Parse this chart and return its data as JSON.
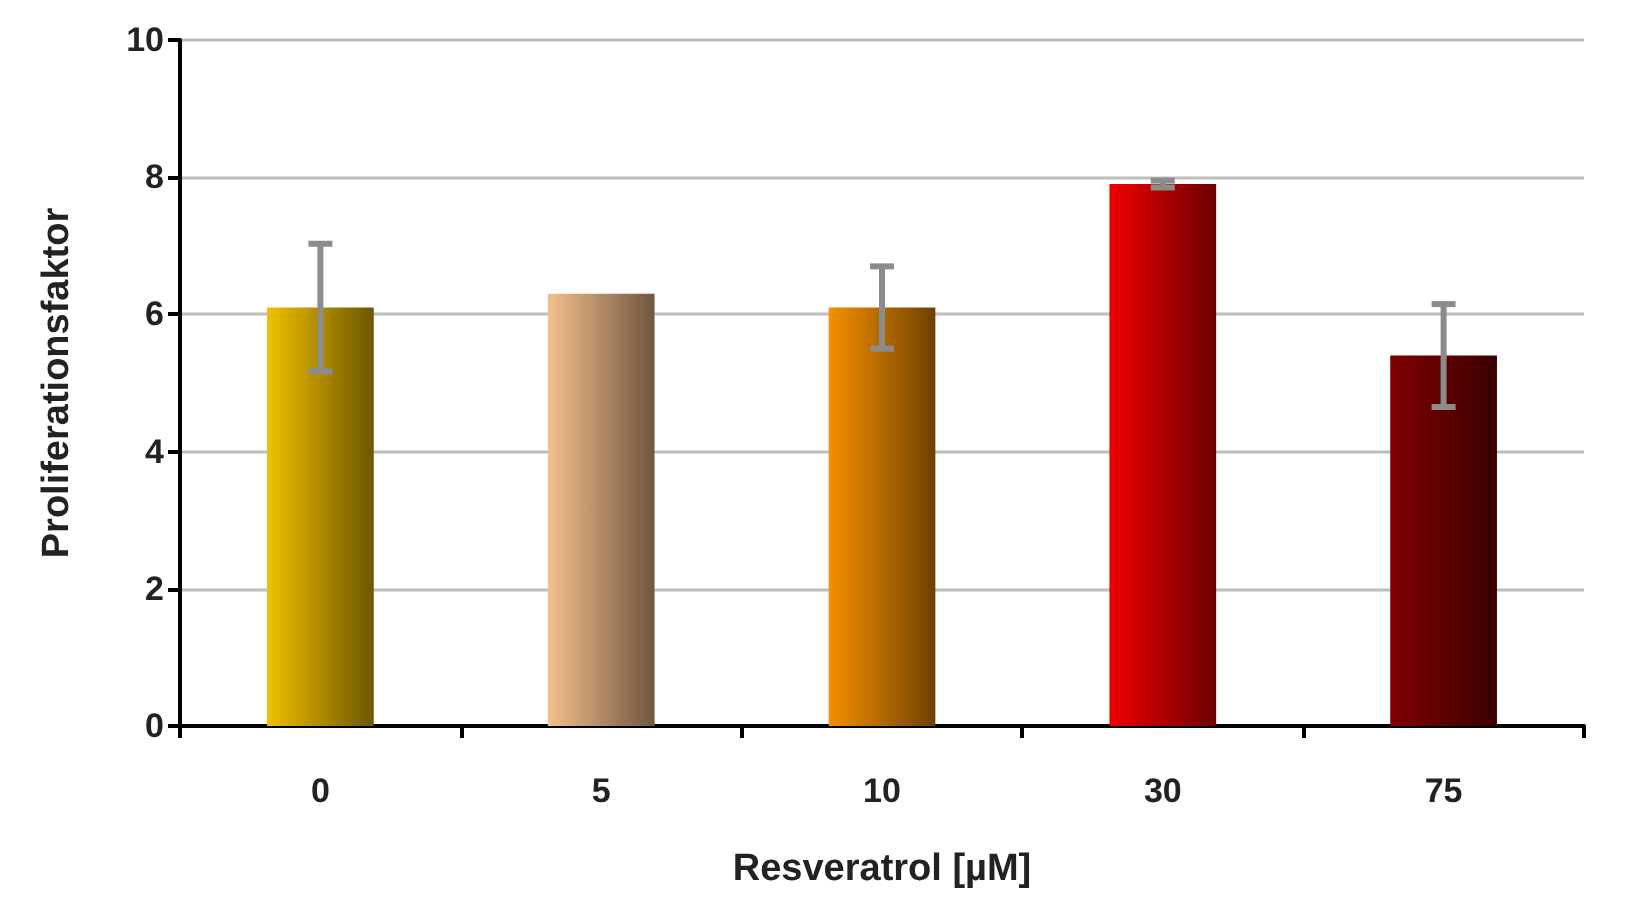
{
  "chart_data": {
    "type": "bar",
    "xlabel": "Resveratrol [µM]",
    "ylabel": "Proliferationsfaktor",
    "categories": [
      "0",
      "5",
      "10",
      "30",
      "75"
    ],
    "values": [
      6.1,
      6.3,
      6.1,
      7.9,
      5.4
    ],
    "colors": [
      "#f0c000",
      "#f5c08c",
      "#f59000",
      "#f00000",
      "#800000"
    ],
    "errors": [
      0.93,
      null,
      0.6,
      0.05,
      0.75
    ],
    "ylim": [
      0,
      10
    ],
    "yticks": [
      0,
      2,
      4,
      6,
      8,
      10
    ],
    "grid": "y"
  }
}
